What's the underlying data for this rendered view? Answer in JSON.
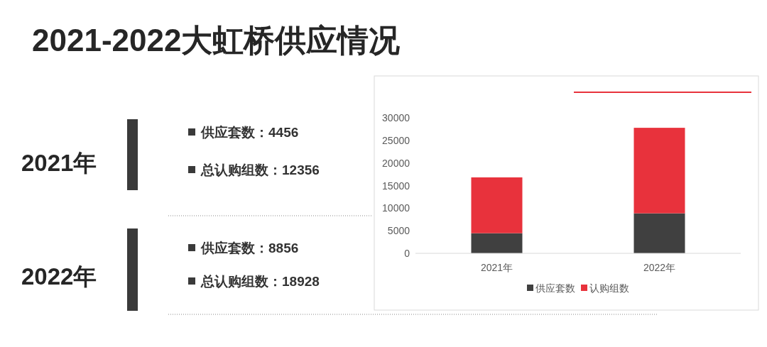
{
  "chart_data": [
    {
      "type": "other",
      "title": "2021-2022大虹桥供应情况",
      "annotations": [
        "2021年",
        "供应套数：4456",
        "总认购组数：12356",
        "2022年",
        "供应套数：8856",
        "总认购组数：18928"
      ]
    },
    {
      "type": "bar",
      "stacked": true,
      "categories": [
        "2021年",
        "2022年"
      ],
      "series": [
        {
          "name": "供应套数",
          "color": "#404040",
          "values": [
            4456,
            8856
          ]
        },
        {
          "name": "认购组数",
          "color": "#e8323c",
          "values": [
            12356,
            18928
          ]
        }
      ],
      "ylim": [
        0,
        30000
      ],
      "yticks": [
        0,
        5000,
        10000,
        15000,
        20000,
        25000,
        30000
      ],
      "grid": false,
      "legend": "bottom"
    }
  ]
}
